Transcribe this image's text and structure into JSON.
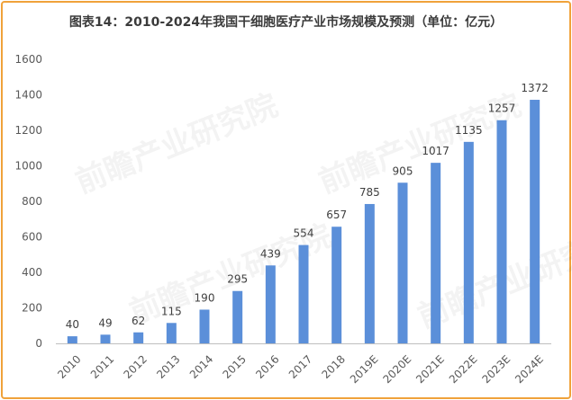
{
  "chart_data": {
    "type": "bar",
    "title": "图表14：2010-2024年我国干细胞医疗产业市场规模及预测（单位：亿元）",
    "categories": [
      "2010",
      "2011",
      "2012",
      "2013",
      "2014",
      "2015",
      "2016",
      "2017",
      "2018",
      "2019E",
      "2020E",
      "2021E",
      "2022E",
      "2023E",
      "2024E"
    ],
    "values": [
      40,
      49,
      62,
      115,
      190,
      295,
      439,
      554,
      657,
      785,
      905,
      1017,
      1135,
      1257,
      1372
    ],
    "ylim": [
      0,
      1600
    ],
    "yticks": [
      0,
      200,
      400,
      600,
      800,
      1000,
      1200,
      1400,
      1600
    ],
    "grid": false,
    "legend": "none",
    "bar_color": "#5b8fd9"
  },
  "watermark": "前瞻产业研究院"
}
